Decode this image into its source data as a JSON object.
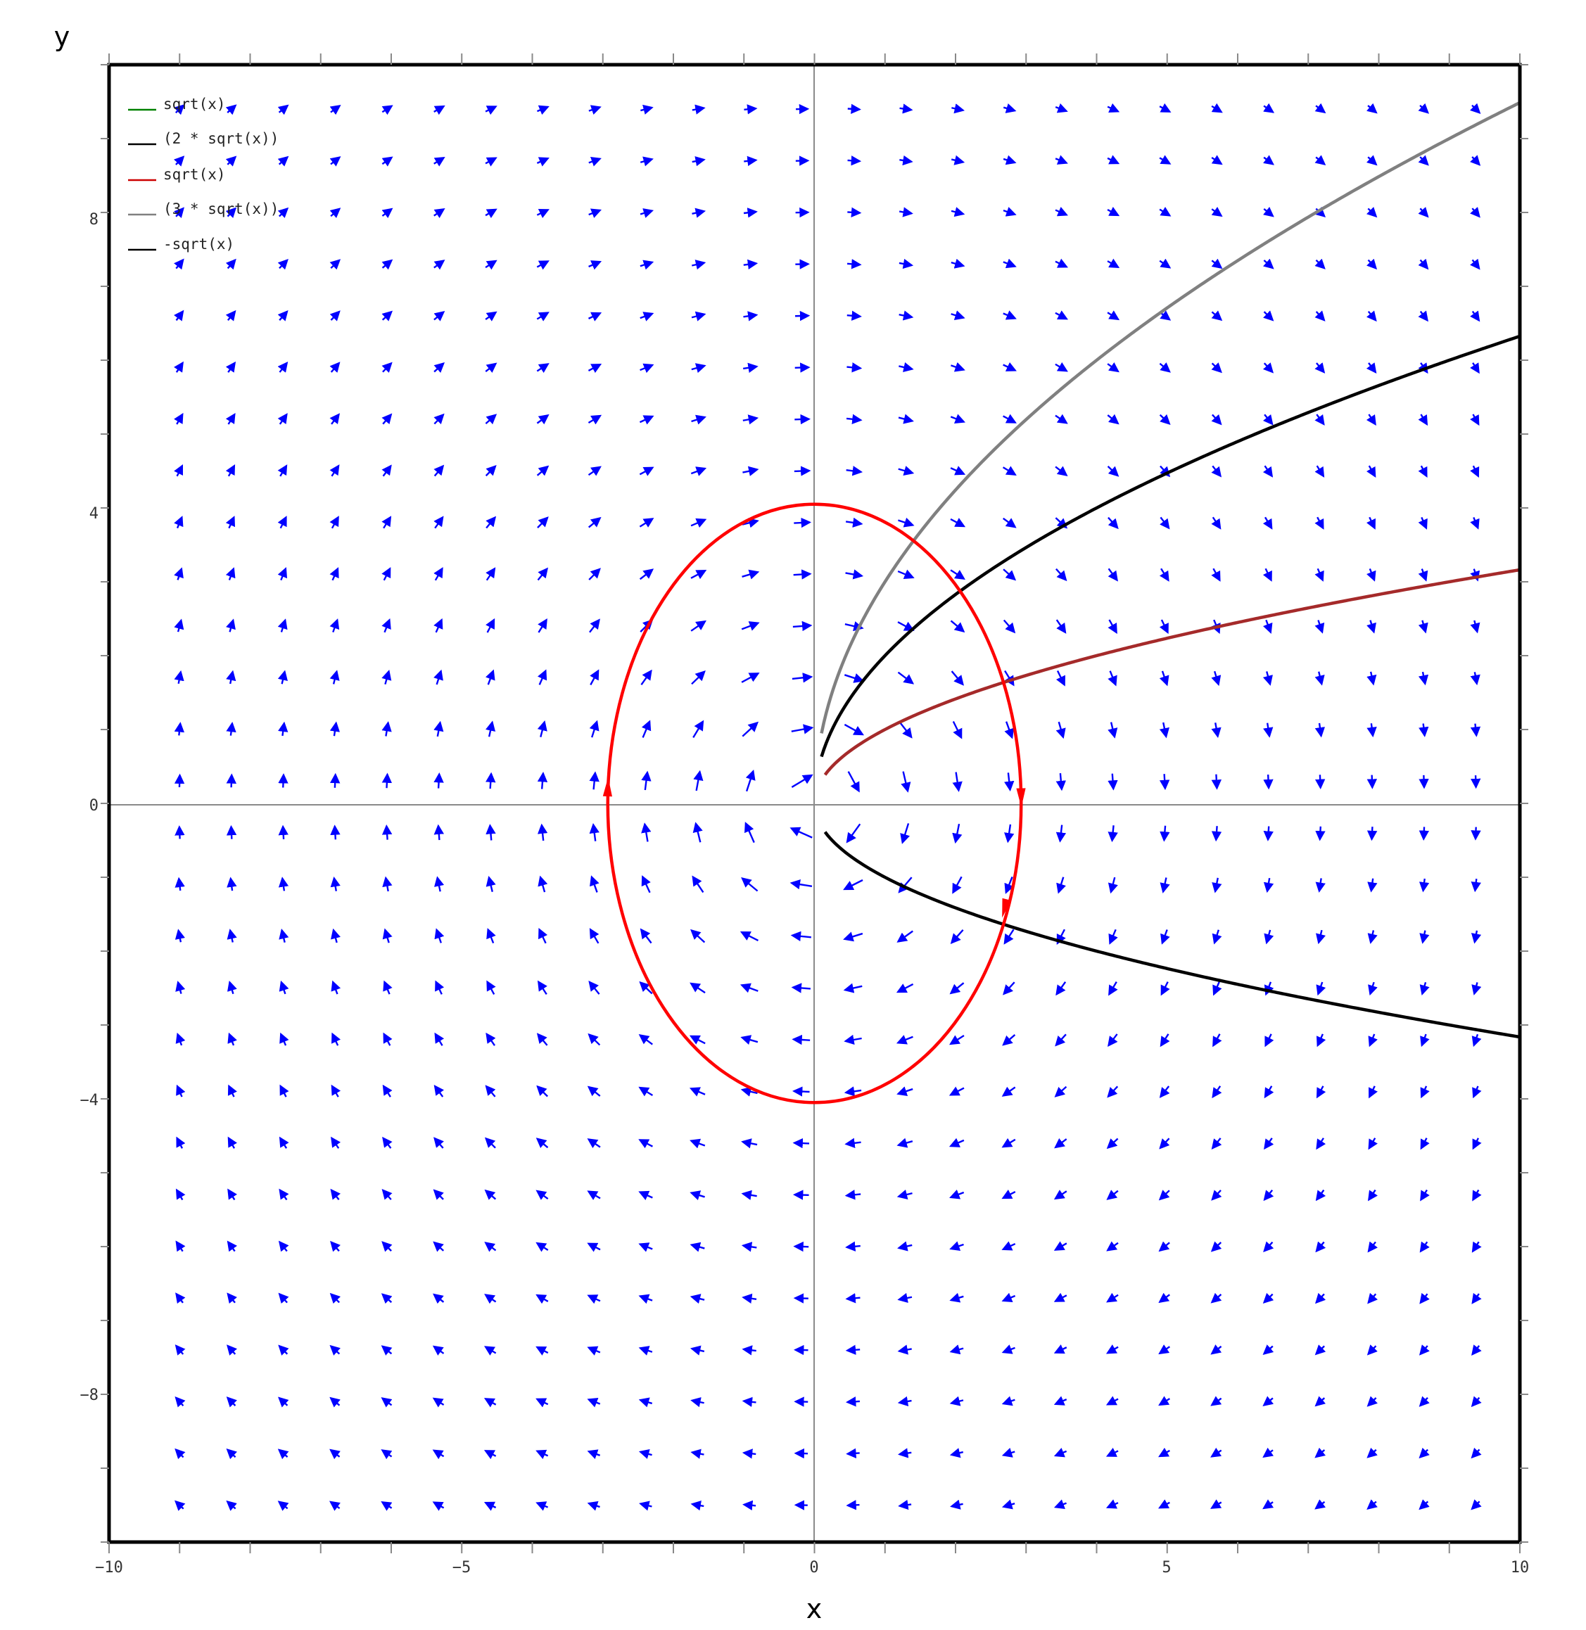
{
  "chart_data": {
    "type": "line",
    "title": "",
    "xlabel": "x",
    "ylabel": "y",
    "xlim": [
      -10,
      10
    ],
    "ylim": [
      -10,
      10
    ],
    "x_ticks": [
      -10,
      -5,
      0,
      5,
      10
    ],
    "y_ticks": [
      -8,
      -4,
      0,
      4,
      8
    ],
    "x_tick_labels": [
      "−10",
      "−5",
      "0",
      "5",
      "10"
    ],
    "y_tick_labels": [
      "−8",
      "−4",
      "0",
      "4",
      "8"
    ],
    "grid": false,
    "legend_position": "top-left",
    "legend": [
      {
        "label": "sqrt(x)",
        "color": "#008000"
      },
      {
        "label": "(2 * sqrt(x))",
        "color": "#000000"
      },
      {
        "label": "sqrt(x)",
        "color": "#cc0000"
      },
      {
        "label": "(3 * sqrt(x))",
        "color": "#808080"
      },
      {
        "label": "-sqrt(x)",
        "color": "#000000"
      }
    ],
    "series": [
      {
        "name": "(3 * sqrt(x))",
        "coef": 3,
        "color": "#808080",
        "x_range": [
          0.1,
          10
        ]
      },
      {
        "name": "(2 * sqrt(x))",
        "coef": 2,
        "color": "#000000",
        "x_range": [
          0.1,
          10
        ]
      },
      {
        "name": "sqrt(x)",
        "coef": 1,
        "color": "#a52a2a",
        "x_range": [
          0.15,
          10
        ]
      },
      {
        "name": "-sqrt(x)",
        "coef": -1,
        "color": "#000000",
        "x_range": [
          0.15,
          10
        ]
      }
    ],
    "closed_orbit": {
      "shape": "ellipse",
      "rx": 2.93,
      "ry": 4.05,
      "center": [
        0,
        0
      ],
      "color": "#ff0000",
      "arrows": [
        [
          -2.93,
          0.2
        ],
        [
          2.93,
          0.1
        ],
        [
          2.7,
          -1.4
        ]
      ]
    },
    "vector_field": {
      "x_min": -9,
      "x_max": 9.75,
      "x_step": 0.735,
      "y_min": -9.5,
      "y_max": 9.5,
      "y_step": 0.7,
      "color": "#0000ff"
    }
  }
}
